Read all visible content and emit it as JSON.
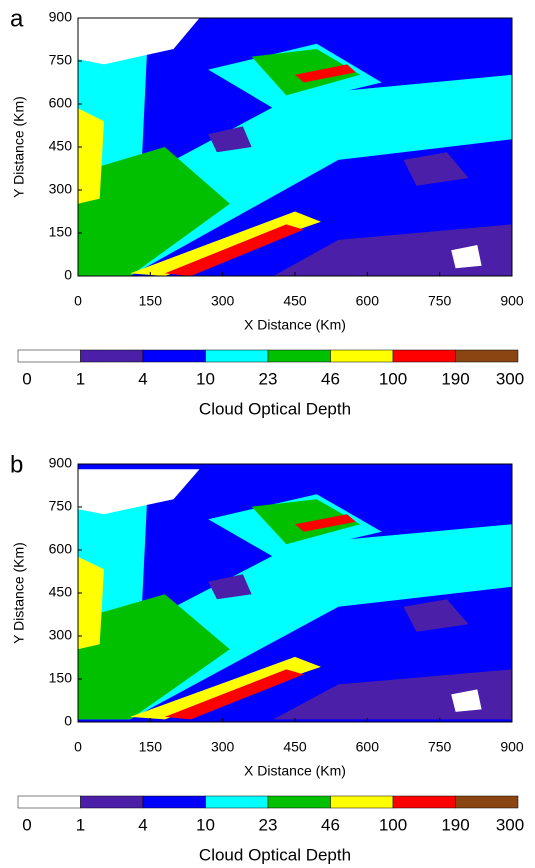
{
  "chart_data": [
    {
      "type": "contour",
      "panel": "a",
      "xlabel": "X Distance (Km)",
      "ylabel": "Y Distance (Km)",
      "xlim": [
        0,
        900
      ],
      "ylim": [
        0,
        900
      ],
      "xticks": [
        0,
        150,
        300,
        450,
        600,
        750,
        900
      ],
      "yticks": [
        0,
        150,
        300,
        450,
        600,
        750,
        900
      ],
      "colorbar": {
        "label": "Cloud Optical Depth",
        "levels": [
          0,
          1,
          4,
          10,
          23,
          46,
          100,
          190,
          300
        ],
        "colors": [
          "#ffffff",
          "#4b1fa8",
          "#0000ff",
          "#00ffff",
          "#00c000",
          "#ffff00",
          "#ff0000",
          "#8b4513"
        ]
      }
    },
    {
      "type": "contour",
      "panel": "b",
      "xlabel": "X Distance (Km)",
      "ylabel": "Y Distance (Km)",
      "xlim": [
        0,
        900
      ],
      "ylim": [
        0,
        900
      ],
      "xticks": [
        0,
        150,
        300,
        450,
        600,
        750,
        900
      ],
      "yticks": [
        0,
        150,
        300,
        450,
        600,
        750,
        900
      ],
      "colorbar": {
        "label": "Cloud Optical Depth",
        "levels": [
          0,
          1,
          4,
          10,
          23,
          46,
          100,
          190,
          300
        ],
        "colors": [
          "#ffffff",
          "#4b1fa8",
          "#0000ff",
          "#00ffff",
          "#00c000",
          "#ffff00",
          "#ff0000",
          "#8b4513"
        ]
      }
    }
  ]
}
